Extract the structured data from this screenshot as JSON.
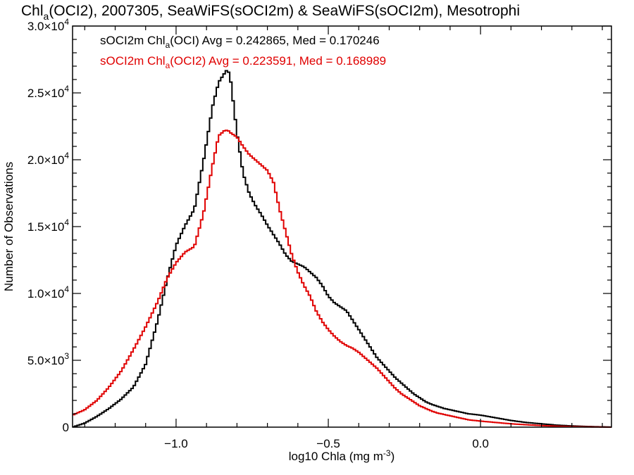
{
  "chart_data": {
    "type": "line",
    "title": {
      "prefix": "Chl",
      "sub": "a",
      "rest": "(OCI2), 2007305, SeaWiFS(sOCI2m) & SeaWiFS(sOCI2m), Mesotrophi"
    },
    "xlabel": {
      "main": "log10 Chla (mg m",
      "sup": "-3",
      "end": ")"
    },
    "ylabel": "Number of Observations",
    "xlim": [
      -1.34,
      0.43
    ],
    "ylim": [
      0,
      30000
    ],
    "x_ticks": [
      {
        "value": -1.0,
        "label": "−1.0"
      },
      {
        "value": -0.5,
        "label": "−0.5"
      },
      {
        "value": 0.0,
        "label": "0.0"
      }
    ],
    "y_ticks": [
      {
        "value": 0,
        "mant": "0",
        "exp": ""
      },
      {
        "value": 5000,
        "mant": "5.0×10",
        "exp": "3"
      },
      {
        "value": 10000,
        "mant": "1.0×10",
        "exp": "4"
      },
      {
        "value": 15000,
        "mant": "1.5×10",
        "exp": "4"
      },
      {
        "value": 20000,
        "mant": "2.0×10",
        "exp": "4"
      },
      {
        "value": 25000,
        "mant": "2.5×10",
        "exp": "4"
      },
      {
        "value": 30000,
        "mant": "3.0×10",
        "exp": "4"
      }
    ],
    "series": [
      {
        "name": "sOCI2m Chla(OCI)",
        "legend": {
          "pre": "sOCI2m Chl",
          "sub": "a",
          "post": "(OCI) Avg = 0.242865, Med = 0.170246"
        },
        "color": "#000000",
        "x": [
          -1.34,
          -1.3,
          -1.26,
          -1.22,
          -1.18,
          -1.14,
          -1.1,
          -1.06,
          -1.03,
          -1.0,
          -0.97,
          -0.94,
          -0.91,
          -0.88,
          -0.86,
          -0.84,
          -0.83,
          -0.82,
          -0.8,
          -0.78,
          -0.76,
          -0.74,
          -0.72,
          -0.7,
          -0.68,
          -0.66,
          -0.64,
          -0.62,
          -0.6,
          -0.58,
          -0.56,
          -0.54,
          -0.52,
          -0.5,
          -0.48,
          -0.46,
          -0.44,
          -0.42,
          -0.4,
          -0.38,
          -0.36,
          -0.34,
          -0.32,
          -0.3,
          -0.28,
          -0.26,
          -0.24,
          -0.22,
          -0.2,
          -0.18,
          -0.16,
          -0.14,
          -0.12,
          -0.1,
          -0.08,
          -0.06,
          -0.04,
          -0.02,
          0.0,
          0.05,
          0.1,
          0.15,
          0.2,
          0.25,
          0.3,
          0.35,
          0.4,
          0.43
        ],
        "y": [
          0,
          300,
          800,
          1400,
          2100,
          3000,
          4700,
          8000,
          11000,
          13600,
          15100,
          16300,
          19900,
          24000,
          25800,
          26500,
          26800,
          25800,
          22000,
          19000,
          17500,
          16600,
          15900,
          15100,
          14400,
          13700,
          12900,
          12400,
          12200,
          12000,
          11600,
          11200,
          10600,
          9800,
          9300,
          9000,
          8700,
          8000,
          7300,
          6600,
          5900,
          5200,
          4700,
          4200,
          3700,
          3300,
          2900,
          2500,
          2200,
          1900,
          1700,
          1550,
          1400,
          1300,
          1200,
          1100,
          1000,
          950,
          900,
          700,
          500,
          350,
          250,
          150,
          90,
          50,
          20,
          5
        ]
      },
      {
        "name": "sOCI2m Chla(OCI2)",
        "legend": {
          "pre": "sOCI2m Chl",
          "sub": "a",
          "post": "(OCI2) Avg = 0.223591, Med = 0.168989"
        },
        "color": "#e00000",
        "x": [
          -1.34,
          -1.3,
          -1.26,
          -1.22,
          -1.18,
          -1.14,
          -1.1,
          -1.06,
          -1.03,
          -1.0,
          -0.97,
          -0.94,
          -0.91,
          -0.88,
          -0.86,
          -0.84,
          -0.83,
          -0.82,
          -0.8,
          -0.78,
          -0.76,
          -0.74,
          -0.72,
          -0.7,
          -0.68,
          -0.66,
          -0.64,
          -0.62,
          -0.6,
          -0.58,
          -0.56,
          -0.54,
          -0.52,
          -0.5,
          -0.48,
          -0.46,
          -0.44,
          -0.42,
          -0.4,
          -0.38,
          -0.36,
          -0.34,
          -0.32,
          -0.3,
          -0.28,
          -0.26,
          -0.24,
          -0.22,
          -0.2,
          -0.18,
          -0.16,
          -0.14,
          -0.12,
          -0.1,
          -0.08,
          -0.06,
          -0.04,
          -0.02,
          0.0,
          0.05,
          0.1,
          0.15,
          0.2,
          0.25,
          0.3,
          0.35,
          0.4,
          0.43
        ],
        "y": [
          900,
          1300,
          2000,
          3000,
          4200,
          5800,
          7500,
          9400,
          11100,
          12300,
          13100,
          13500,
          16000,
          19600,
          21800,
          22200,
          22200,
          22000,
          21700,
          21000,
          20400,
          20000,
          19600,
          19200,
          18300,
          16300,
          14600,
          12900,
          11600,
          10600,
          9800,
          8700,
          7900,
          7300,
          6800,
          6400,
          6100,
          5900,
          5600,
          5200,
          4800,
          4400,
          3900,
          3400,
          2900,
          2500,
          2200,
          1900,
          1600,
          1400,
          1200,
          1050,
          950,
          850,
          750,
          650,
          550,
          500,
          450,
          350,
          250,
          180,
          120,
          70,
          40,
          20,
          8,
          0
        ]
      }
    ],
    "grid": false,
    "legend_position": "top-left"
  }
}
